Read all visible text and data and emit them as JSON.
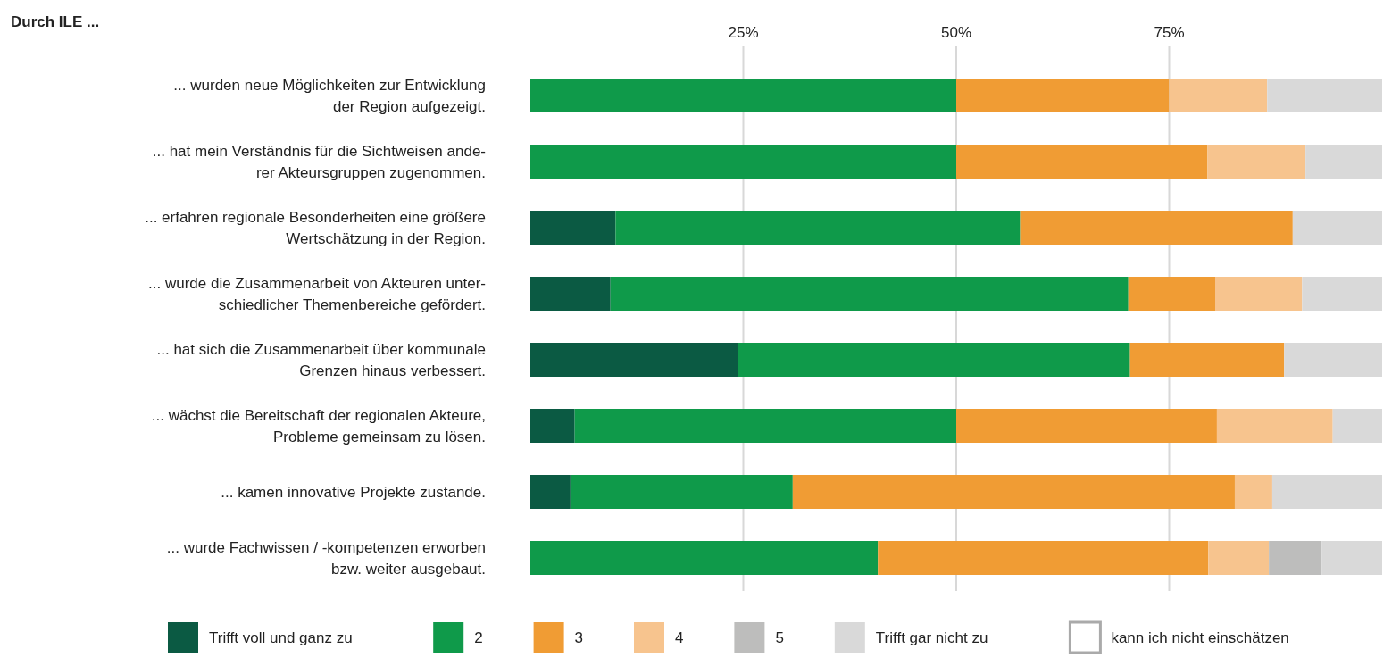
{
  "chart_data": {
    "type": "bar",
    "orientation": "horizontal",
    "stacked": true,
    "title": "Durch ILE ...",
    "categories": [
      "... wurden neue Möglichkeiten zur Entwicklung\nder Region aufgezeigt.",
      "... hat mein Verständnis für die Sichtweisen ande-\nrer Akteursgruppen zugenommen.",
      "... erfahren regionale Besonderheiten eine größere\nWertschätzung in der Region.",
      "... wurde die Zusammenarbeit von Akteuren unter-\nschiedlicher Themenbereiche gefördert.",
      "... hat sich die Zusammenarbeit über kommunale\nGrenzen hinaus verbessert.",
      "... wächst die Bereitschaft der regionalen Akteure,\nProbleme gemeinsam zu lösen.",
      "... kamen innovative Projekte zustande.",
      "... wurde Fachwissen / -kompetenzen erworben\nbzw. weiter ausgebaut."
    ],
    "series": [
      {
        "name": "Trifft voll und ganz zu",
        "color": "#0b5a43",
        "values": [
          0,
          0,
          10,
          9.4,
          24.4,
          5.2,
          4.7,
          0
        ]
      },
      {
        "name": "2",
        "color": "#0f9a4a",
        "values": [
          50,
          50,
          47.5,
          60.8,
          46,
          44.8,
          26.1,
          40.8
        ]
      },
      {
        "name": "3",
        "color": "#f09c34",
        "values": [
          25,
          29.5,
          32,
          10.2,
          18.1,
          30.6,
          51.9,
          38.8
        ]
      },
      {
        "name": "4",
        "color": "#f7c48e",
        "values": [
          11.5,
          11.5,
          0,
          10.2,
          0,
          13.6,
          4.4,
          7.1
        ]
      },
      {
        "name": "5",
        "color": "#bdbdbc",
        "values": [
          0,
          0,
          0,
          0,
          0,
          0,
          0,
          6.2
        ]
      },
      {
        "name": "Trifft gar nicht zu",
        "color": "#d9d9d9",
        "values": [
          13.5,
          9,
          10.5,
          9.4,
          11.5,
          5.8,
          12.9,
          7.1
        ]
      },
      {
        "name": "kann ich nicht einschätzen",
        "color": "#ffffff",
        "values": [
          0,
          0,
          0,
          0,
          0,
          0,
          0,
          0
        ]
      }
    ],
    "xlim": [
      0,
      100
    ],
    "xticks": [
      {
        "value": 25,
        "label": "25%"
      },
      {
        "value": 50,
        "label": "50%"
      },
      {
        "value": 75,
        "label": "75%"
      }
    ],
    "grid": "x",
    "legend": "bottom"
  }
}
